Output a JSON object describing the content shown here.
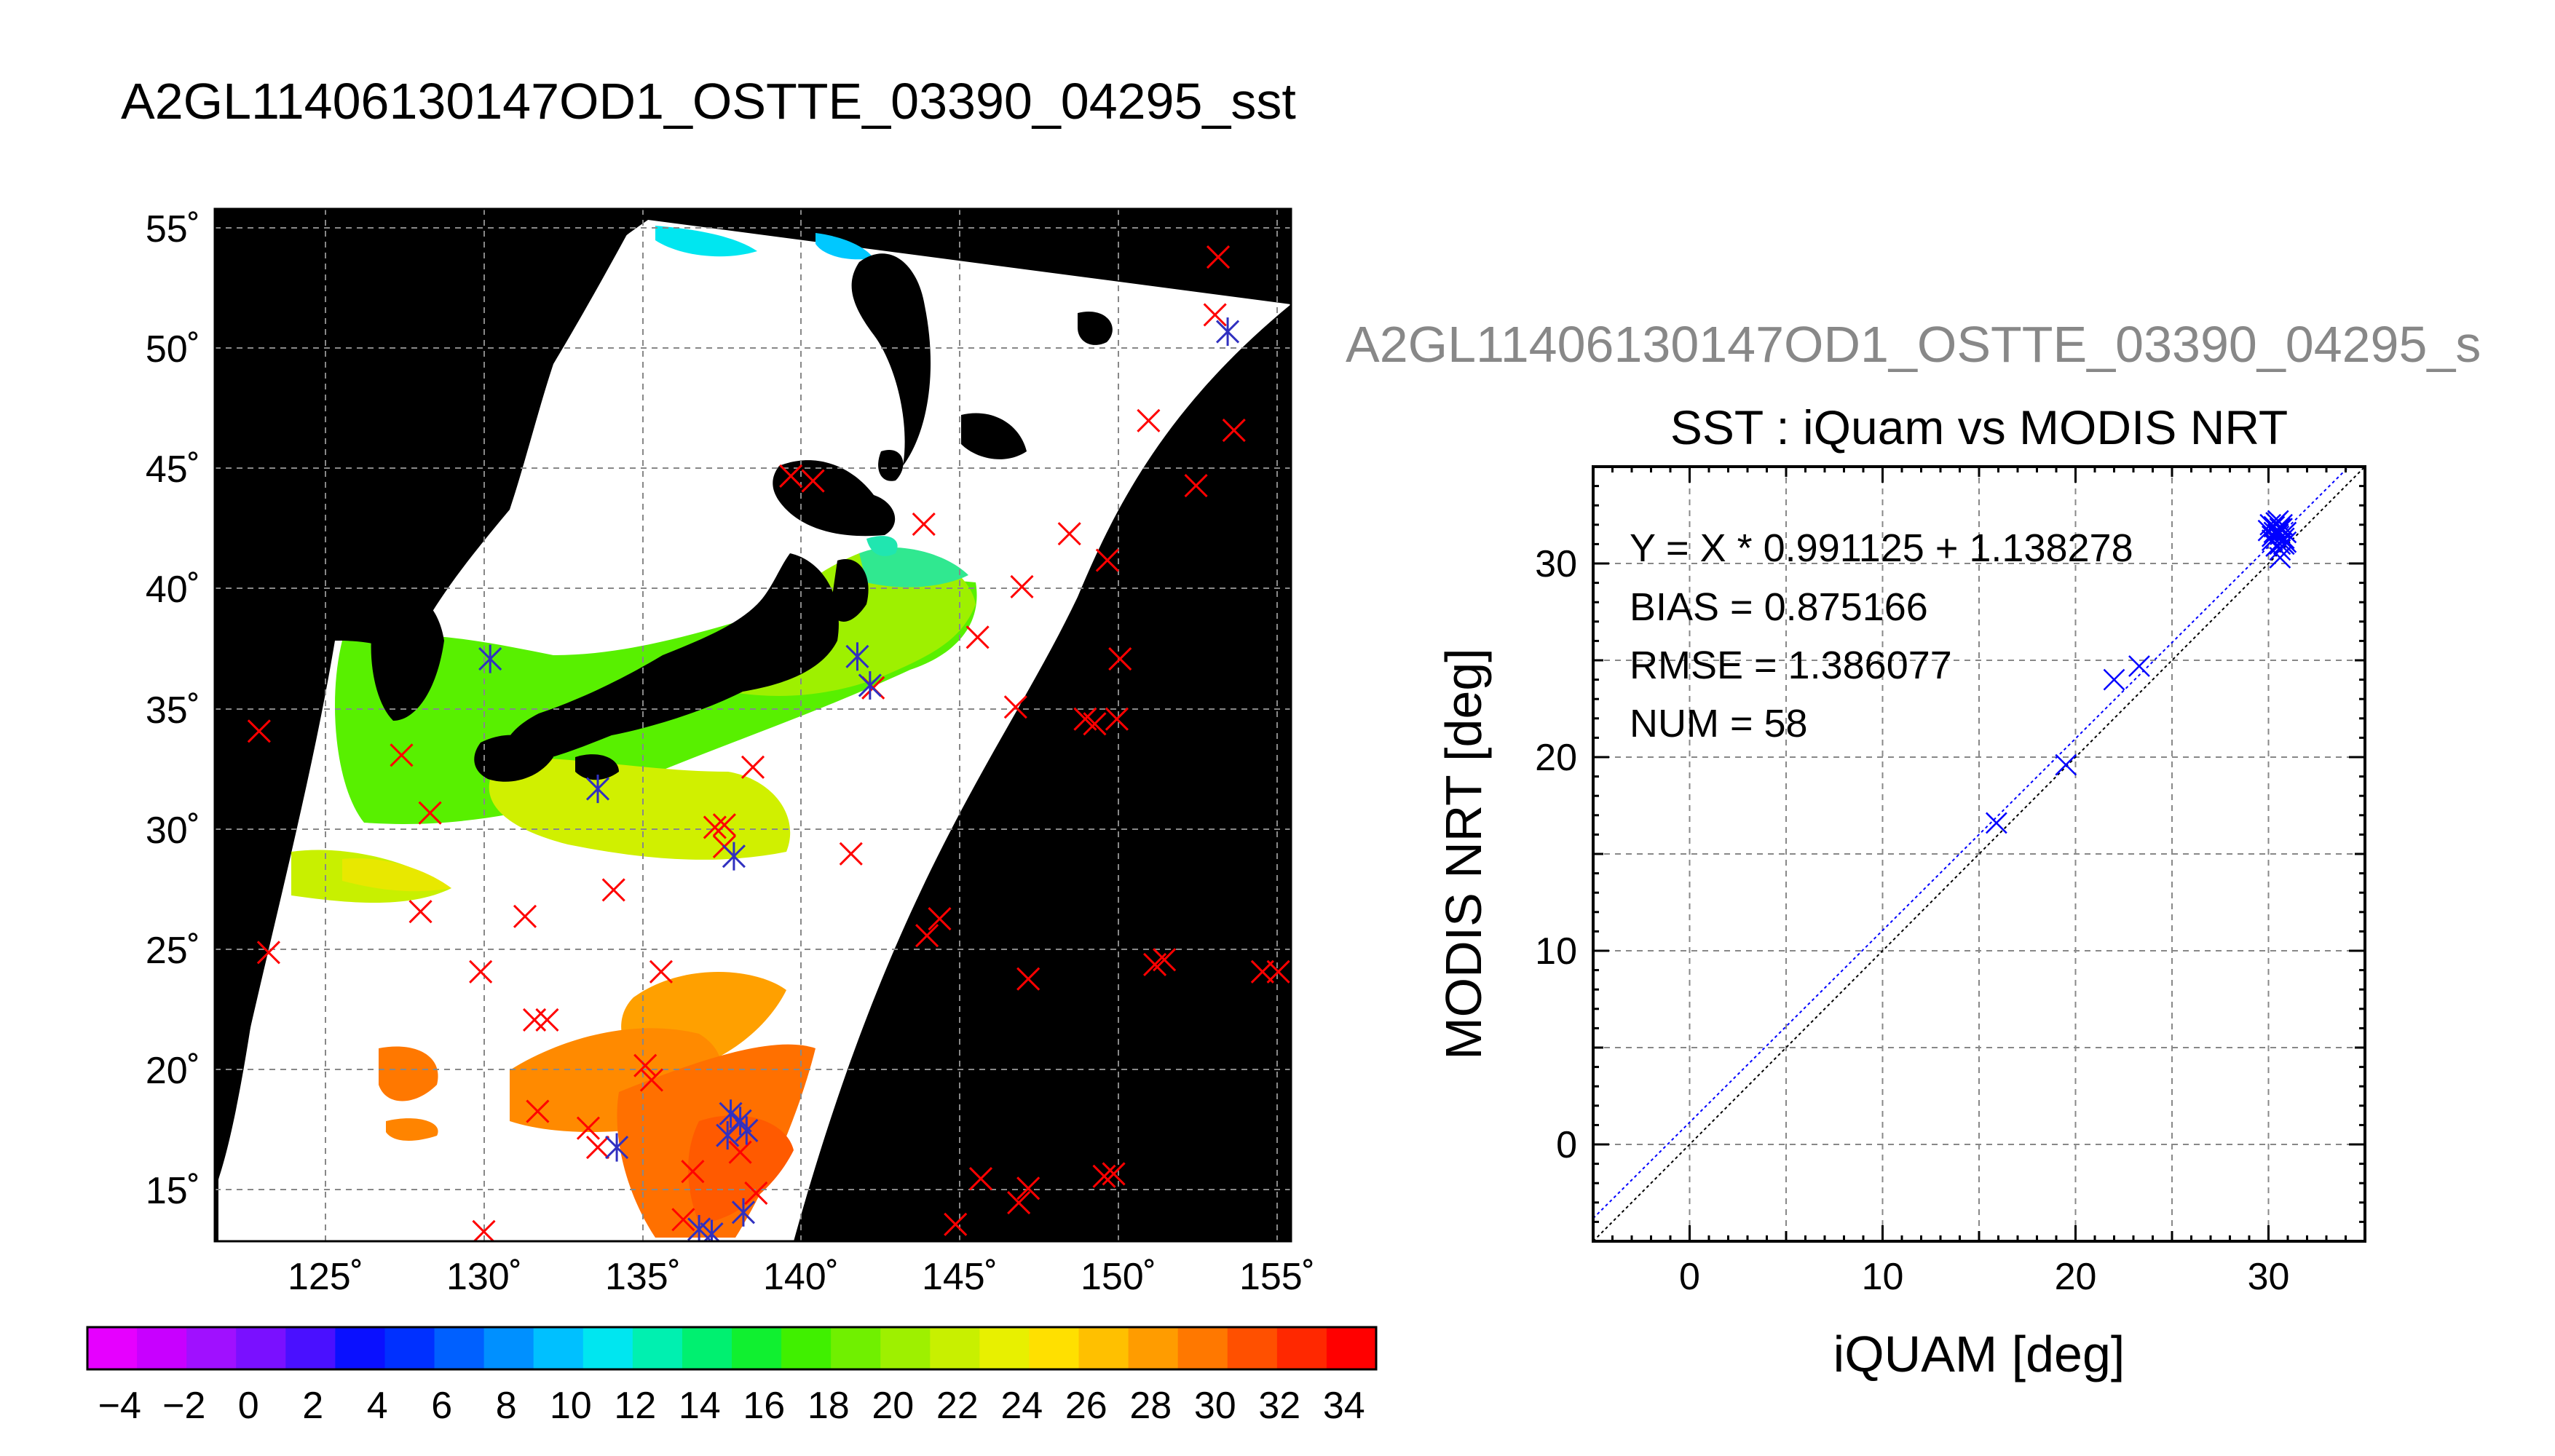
{
  "page": {
    "title": "A2GL11406130147OD1_OSTTE_03390_04295_sst",
    "title_right": "A2GL11406130147OD1_OSTTE_03390_04295_s"
  },
  "colors": {
    "background": "#ffffff",
    "land": "#000000",
    "no_data": "#ffffff",
    "in_situ_marker": "#ff0000",
    "collocated_marker": "#3030c0",
    "regression_line": "#0000ff",
    "one_to_one_line": "#000000",
    "title_right": "#888888"
  },
  "map": {
    "lon_ticks": [
      "125˚",
      "130˚",
      "135˚",
      "140˚",
      "145˚",
      "150˚",
      "155˚"
    ],
    "lat_ticks": [
      "15˚",
      "20˚",
      "25˚",
      "30˚",
      "35˚",
      "40˚",
      "45˚",
      "50˚",
      "55˚"
    ],
    "lon_tick_values": [
      125,
      130,
      135,
      140,
      145,
      150,
      155
    ],
    "lat_tick_values": [
      15,
      20,
      25,
      30,
      35,
      40,
      45,
      50,
      55
    ],
    "lon_range": [
      121.5,
      155.5
    ],
    "lat_range": [
      12.8,
      55.7
    ],
    "grid": true,
    "in_situ_points_red": [
      [
        122.9,
        34.0
      ],
      [
        123.2,
        24.8
      ],
      [
        127.4,
        33.0
      ],
      [
        128.0,
        26.5
      ],
      [
        128.3,
        30.6
      ],
      [
        129.9,
        24.0
      ],
      [
        130.0,
        13.2
      ],
      [
        131.3,
        26.3
      ],
      [
        131.6,
        22.0
      ],
      [
        132.0,
        22.0
      ],
      [
        131.7,
        18.2
      ],
      [
        133.3,
        17.5
      ],
      [
        133.6,
        16.7
      ],
      [
        134.1,
        27.4
      ],
      [
        135.1,
        20.1
      ],
      [
        135.3,
        19.5
      ],
      [
        135.6,
        24.0
      ],
      [
        136.3,
        13.7
      ],
      [
        136.6,
        15.7
      ],
      [
        137.3,
        30.0
      ],
      [
        137.6,
        30.1
      ],
      [
        137.6,
        29.2
      ],
      [
        138.5,
        32.5
      ],
      [
        138.6,
        14.8
      ],
      [
        138.1,
        16.5
      ],
      [
        139.7,
        44.6
      ],
      [
        140.4,
        44.4
      ],
      [
        141.6,
        28.9
      ],
      [
        142.3,
        35.8
      ],
      [
        143.9,
        42.6
      ],
      [
        144.0,
        25.5
      ],
      [
        144.4,
        26.2
      ],
      [
        144.9,
        13.5
      ],
      [
        145.6,
        37.9
      ],
      [
        145.7,
        15.4
      ],
      [
        146.8,
        35.0
      ],
      [
        146.9,
        14.4
      ],
      [
        147.0,
        40.0
      ],
      [
        147.2,
        23.7
      ],
      [
        147.2,
        15.0
      ],
      [
        148.5,
        42.2
      ],
      [
        149.0,
        34.5
      ],
      [
        149.3,
        34.3
      ],
      [
        149.6,
        15.5
      ],
      [
        149.9,
        15.6
      ],
      [
        149.7,
        41.1
      ],
      [
        150.0,
        34.5
      ],
      [
        150.1,
        37.0
      ],
      [
        151.0,
        46.9
      ],
      [
        151.2,
        24.3
      ],
      [
        151.5,
        24.5
      ],
      [
        152.5,
        44.2
      ],
      [
        153.1,
        51.3
      ],
      [
        153.2,
        53.7
      ],
      [
        153.7,
        46.5
      ],
      [
        154.6,
        24.0
      ],
      [
        155.1,
        24.0
      ]
    ],
    "collocated_points": [
      [
        130.2,
        37.0
      ],
      [
        133.6,
        31.6
      ],
      [
        134.2,
        16.7
      ],
      [
        136.8,
        13.3
      ],
      [
        137.2,
        13.1
      ],
      [
        137.8,
        18.1
      ],
      [
        137.7,
        17.2
      ],
      [
        138.1,
        17.8
      ],
      [
        138.3,
        17.4
      ],
      [
        137.9,
        28.8
      ],
      [
        138.2,
        14.0
      ],
      [
        141.8,
        37.1
      ],
      [
        142.2,
        35.9
      ],
      [
        153.5,
        50.6
      ]
    ]
  },
  "colorbar": {
    "labels": [
      "−4",
      "−2",
      "0",
      "2",
      "4",
      "6",
      "8",
      "10",
      "12",
      "14",
      "16",
      "18",
      "20",
      "22",
      "24",
      "26",
      "28",
      "30",
      "32",
      "34"
    ],
    "range": [
      -5,
      35
    ],
    "colors": [
      "#e600ff",
      "#c800ff",
      "#a010ff",
      "#7a10ff",
      "#4a10ff",
      "#0a10ff",
      "#0030ff",
      "#0060ff",
      "#0090ff",
      "#00c0ff",
      "#00e6f0",
      "#00f0b0",
      "#00f070",
      "#10f030",
      "#40f000",
      "#70f000",
      "#9ef000",
      "#c8f000",
      "#e8f000",
      "#ffe000",
      "#ffc000",
      "#ff9c00",
      "#ff7800",
      "#ff5000",
      "#ff2800",
      "#ff0000"
    ]
  },
  "chart_data": {
    "type": "scatter",
    "title": "SST : iQuam vs MODIS NRT",
    "xlabel": "iQUAM [deg]",
    "ylabel": "MODIS NRT [deg]",
    "xlim": [
      -5,
      35
    ],
    "ylim": [
      -5,
      35
    ],
    "x_ticks": [
      "0",
      "10",
      "20",
      "30"
    ],
    "y_ticks": [
      "0",
      "10",
      "20",
      "30"
    ],
    "x_tick_values": [
      0,
      10,
      20,
      30
    ],
    "y_tick_values": [
      0,
      10,
      20,
      30
    ],
    "grid": true,
    "annotations": [
      "Y = X * 0.991125 + 1.138278",
      "BIAS = 0.875166",
      "RMSE = 1.386077",
      "NUM = 58"
    ],
    "regression": {
      "slope": 0.991125,
      "intercept": 1.138278
    },
    "series": [
      {
        "points": [
          [
            15.9,
            16.6
          ],
          [
            19.5,
            19.6
          ],
          [
            22.0,
            24.0
          ],
          [
            23.3,
            24.7
          ],
          [
            30.0,
            31.7
          ],
          [
            30.1,
            32.0
          ],
          [
            30.2,
            31.2
          ],
          [
            30.3,
            31.9
          ],
          [
            30.4,
            32.1
          ],
          [
            30.5,
            31.5
          ],
          [
            30.6,
            31.0
          ],
          [
            30.6,
            30.7
          ],
          [
            30.7,
            31.8
          ],
          [
            30.8,
            31.3
          ],
          [
            30.9,
            31.6
          ],
          [
            30.4,
            30.9
          ],
          [
            30.6,
            30.3
          ],
          [
            30.8,
            31.0
          ],
          [
            30.2,
            31.4
          ],
          [
            30.5,
            32.2
          ],
          [
            30.7,
            32.0
          ],
          [
            30.9,
            31.1
          ],
          [
            30.3,
            31.6
          ],
          [
            30.6,
            31.8
          ]
        ]
      }
    ]
  }
}
